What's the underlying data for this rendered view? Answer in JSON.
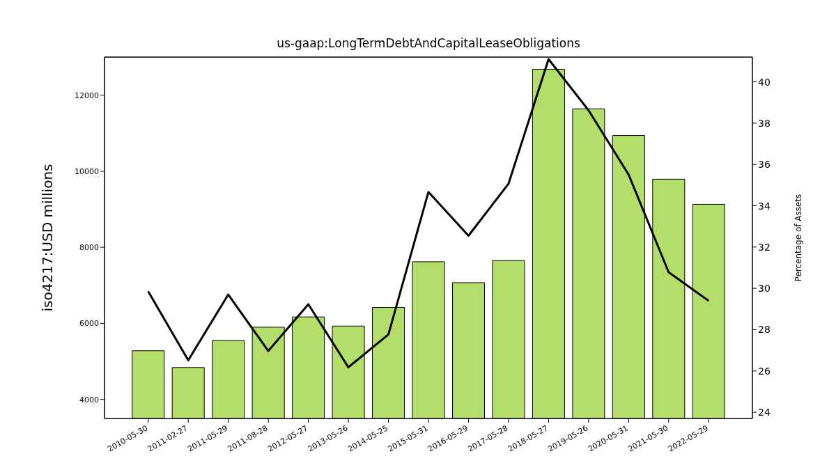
{
  "chart_data": {
    "type": "bar",
    "title": "us-gaap:LongTermDebtAndCapitalLeaseObligations",
    "ylabel": "iso4217:USD  millions",
    "y2label": "Percentage of Assets",
    "categories": [
      "2010-05-30",
      "2011-02-27",
      "2011-05-29",
      "2011-08-28",
      "2012-05-27",
      "2013-05-26",
      "2014-05-25",
      "2015-05-31",
      "2016-05-29",
      "2017-05-28",
      "2018-05-27",
      "2019-05-26",
      "2020-05-31",
      "2021-05-30",
      "2022-05-29"
    ],
    "series": [
      {
        "color": "#b3de69",
        "values": [
          5280,
          4840,
          5550,
          5900,
          6170,
          5930,
          6420,
          7620,
          7070,
          7650,
          12680,
          11640,
          10940,
          9790,
          9130
        ]
      },
      {
        "type": "line",
        "axis": "y2",
        "color": "#000000",
        "values": [
          29.85,
          26.52,
          29.7,
          26.97,
          29.23,
          26.18,
          27.77,
          34.67,
          32.55,
          35.07,
          41.1,
          38.62,
          35.51,
          30.78,
          29.4
        ]
      }
    ],
    "ylim": [
      3500,
      13000
    ],
    "yticks": [
      4000,
      6000,
      8000,
      10000,
      12000
    ],
    "y2lim": [
      23.7,
      41.2
    ],
    "y2ticks": [
      24,
      26,
      28,
      30,
      32,
      34,
      36,
      38,
      40
    ]
  }
}
